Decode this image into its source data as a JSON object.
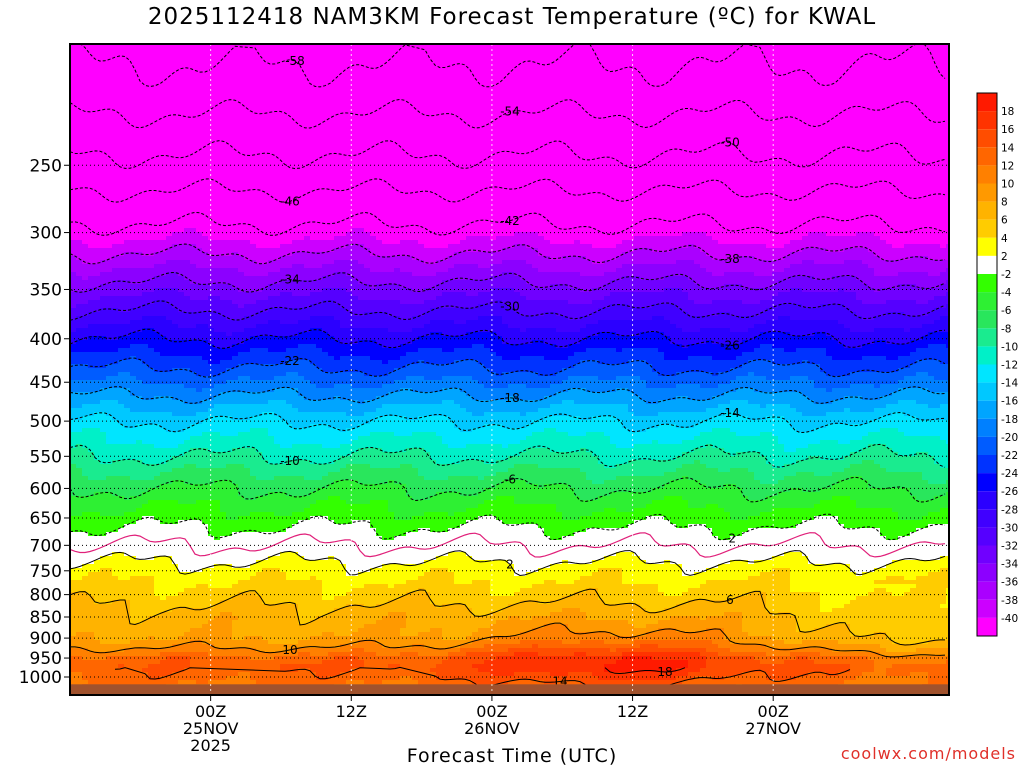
{
  "title": "2025112418 NAM3KM Forecast Temperature (ºC) for KWAL",
  "credit": "coolwx.com/models",
  "colors": {
    "below_minus40": "#ff00ff",
    "ground": "#a0522d",
    "frame": "#000000",
    "zero_line": "#e0207a"
  },
  "chart_data": {
    "type": "heatmap",
    "title": "2025112418 NAM3KM Forecast Temperature (ºC) for KWAL",
    "xlabel": "Forecast Time (UTC)",
    "ylabel": "",
    "x_unit": "forecast hour",
    "xlim": [
      -6,
      69
    ],
    "y_unit": "hPa",
    "ylim": [
      1050,
      180
    ],
    "y_ticks": [
      1000,
      950,
      900,
      850,
      800,
      750,
      700,
      650,
      600,
      550,
      500,
      450,
      400,
      350,
      300,
      250
    ],
    "x_ticks": [
      {
        "hour": 6,
        "lines": [
          "00Z",
          "25NOV",
          "2025"
        ]
      },
      {
        "hour": 18,
        "lines": [
          "12Z"
        ]
      },
      {
        "hour": 30,
        "lines": [
          "00Z",
          "26NOV"
        ]
      },
      {
        "hour": 42,
        "lines": [
          "12Z"
        ]
      },
      {
        "hour": 54,
        "lines": [
          "00Z",
          "27NOV"
        ]
      }
    ],
    "ground_level_hpa": 1020,
    "temperature_profile": {
      "pressure_hpa": [
        1020,
        975,
        950,
        925,
        900,
        850,
        800,
        750,
        700,
        650,
        600,
        550,
        500,
        450,
        400,
        350,
        300,
        250,
        200
      ],
      "temp_c": [
        12,
        14,
        13,
        10,
        8,
        7,
        5,
        3,
        0,
        -3,
        -6,
        -10,
        -14,
        -20,
        -26,
        -33,
        -41,
        -49,
        -57
      ]
    },
    "colorbar": {
      "bins": [
        {
          "lo": 18,
          "hi": 20,
          "color": "#ff1a00"
        },
        {
          "lo": 16,
          "hi": 18,
          "color": "#ff3300"
        },
        {
          "lo": 14,
          "hi": 16,
          "color": "#ff4d00"
        },
        {
          "lo": 12,
          "hi": 14,
          "color": "#ff6600"
        },
        {
          "lo": 10,
          "hi": 12,
          "color": "#ff8000"
        },
        {
          "lo": 8,
          "hi": 10,
          "color": "#ff9900"
        },
        {
          "lo": 6,
          "hi": 8,
          "color": "#ffb300"
        },
        {
          "lo": 4,
          "hi": 6,
          "color": "#ffcc00"
        },
        {
          "lo": 2,
          "hi": 4,
          "color": "#ffff00"
        },
        {
          "lo": -2,
          "hi": 2,
          "color": "#ffffff"
        },
        {
          "lo": -4,
          "hi": -2,
          "color": "#33ff00"
        },
        {
          "lo": -6,
          "hi": -4,
          "color": "#2ef033"
        },
        {
          "lo": -8,
          "hi": -6,
          "color": "#29e65c"
        },
        {
          "lo": -10,
          "hi": -8,
          "color": "#1aeb8f"
        },
        {
          "lo": -12,
          "hi": -10,
          "color": "#00f0c8"
        },
        {
          "lo": -14,
          "hi": -12,
          "color": "#00e5ff"
        },
        {
          "lo": -16,
          "hi": -14,
          "color": "#00c8ff"
        },
        {
          "lo": -18,
          "hi": -16,
          "color": "#00a5ff"
        },
        {
          "lo": -20,
          "hi": -18,
          "color": "#0080ff"
        },
        {
          "lo": -22,
          "hi": -20,
          "color": "#005cff"
        },
        {
          "lo": -24,
          "hi": -22,
          "color": "#0033ff"
        },
        {
          "lo": -26,
          "hi": -24,
          "color": "#0000ff"
        },
        {
          "lo": -28,
          "hi": -26,
          "color": "#2b00ff"
        },
        {
          "lo": -30,
          "hi": -28,
          "color": "#4000ff"
        },
        {
          "lo": -32,
          "hi": -30,
          "color": "#5500ff"
        },
        {
          "lo": -34,
          "hi": -32,
          "color": "#7000ff"
        },
        {
          "lo": -36,
          "hi": -34,
          "color": "#8c00ff"
        },
        {
          "lo": -38,
          "hi": -36,
          "color": "#aa00ff"
        },
        {
          "lo": -40,
          "hi": -38,
          "color": "#cc00ff"
        },
        {
          "lo": -42,
          "hi": -40,
          "color": "#ff00ff"
        }
      ],
      "labels": [
        "18",
        "16",
        "14",
        "12",
        "10",
        "8",
        "6",
        "4",
        "2",
        "-2",
        "-4",
        "-6",
        "-8",
        "-10",
        "-12",
        "-14",
        "-16",
        "-18",
        "-20",
        "-22",
        "-24",
        "-26",
        "-28",
        "-30",
        "-32",
        "-34",
        "-36",
        "-38",
        "-40"
      ]
    },
    "isotherms": [
      {
        "value": -58,
        "label": "-58"
      },
      {
        "value": -54,
        "label": "-54"
      },
      {
        "value": -50,
        "label": "-50"
      },
      {
        "value": -46,
        "label": "-46"
      },
      {
        "value": -42,
        "label": "-42"
      },
      {
        "value": -38,
        "label": "-38"
      },
      {
        "value": -34,
        "label": "-34"
      },
      {
        "value": -30,
        "label": "-30"
      },
      {
        "value": -26,
        "label": "-26"
      },
      {
        "value": -22,
        "label": "-22"
      },
      {
        "value": -18,
        "label": "-18"
      },
      {
        "value": -14,
        "label": "-14"
      },
      {
        "value": -10,
        "label": "-10"
      },
      {
        "value": -6,
        "label": "-6"
      },
      {
        "value": -2,
        "label": "-2"
      },
      {
        "value": 0,
        "label": ""
      },
      {
        "value": 2,
        "label": "2"
      },
      {
        "value": 6,
        "label": "6"
      },
      {
        "value": 10,
        "label": "10"
      },
      {
        "value": 14,
        "label": "14"
      },
      {
        "value": 18,
        "label": "18"
      }
    ]
  }
}
